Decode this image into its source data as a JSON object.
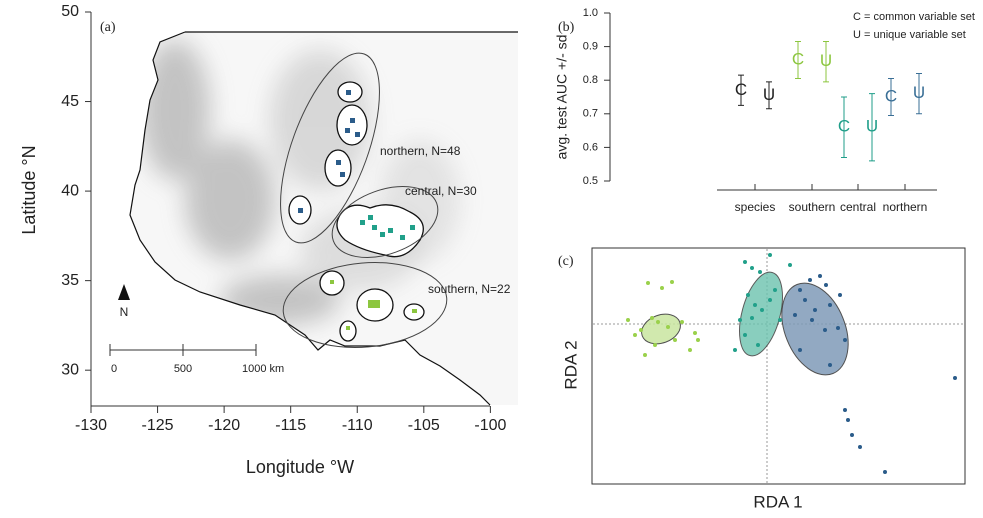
{
  "chart_data": [
    {
      "type": "map",
      "panel": "(a)",
      "x_label": "Longitude °W",
      "y_label": "Latitude °N",
      "xlim": [
        -130,
        -98
      ],
      "ylim": [
        28,
        50
      ],
      "xticks": [
        -130,
        -125,
        -120,
        -115,
        -110,
        -105,
        -100
      ],
      "yticks": [
        30,
        35,
        40,
        45,
        50
      ],
      "annotations": [
        "northern, N=48",
        "central, N=30",
        "southern, N=22"
      ],
      "north_label": "N",
      "scale_bar": [
        "0",
        "500",
        "1000 km"
      ]
    },
    {
      "type": "errorbar",
      "panel": "(b)",
      "y_label": "avg. test AUC +/- sd",
      "legend": [
        "C = common variable set",
        "U = unique variable set"
      ],
      "categories": [
        "species",
        "southern",
        "central",
        "northern"
      ],
      "colors": [
        "#222222",
        "#8cc63f",
        "#1f9e89",
        "#3a6f96"
      ],
      "series": [
        {
          "name": "C",
          "values": [
            0.77,
            0.86,
            0.66,
            0.75
          ],
          "errors": [
            0.045,
            0.055,
            0.09,
            0.055
          ]
        },
        {
          "name": "U",
          "values": [
            0.755,
            0.855,
            0.66,
            0.76
          ],
          "errors": [
            0.04,
            0.06,
            0.1,
            0.06
          ]
        }
      ],
      "ylim": [
        0.5,
        1.0
      ],
      "yticks": [
        0.5,
        0.6,
        0.7,
        0.8,
        0.9,
        {
          "value": 1,
          "label": "1.0"
        }
      ]
    },
    {
      "type": "scatter",
      "panel": "(c)",
      "x_label": "RDA 1",
      "y_label": "RDA 2",
      "xlim": [
        0,
        373
      ],
      "ylim": [
        0,
        236
      ],
      "series": [
        {
          "color": "#9ad14b",
          "x": [
            56,
            70,
            80,
            36,
            43,
            49,
            60,
            66,
            76,
            83,
            90,
            103,
            106,
            53,
            63,
            98
          ],
          "y": [
            201,
            196,
            202,
            164,
            149,
            154,
            166,
            162,
            157,
            144,
            162,
            151,
            144,
            129,
            139,
            134
          ]
        },
        {
          "color": "#21a08a",
          "x": [
            153,
            160,
            168,
            178,
            156,
            163,
            170,
            178,
            148,
            153,
            166,
            143,
            183,
            188,
            160,
            198
          ],
          "y": [
            222,
            216,
            212,
            229,
            189,
            179,
            174,
            184,
            164,
            149,
            139,
            134,
            194,
            164,
            166,
            219
          ]
        },
        {
          "color": "#2b5c8a",
          "x": [
            208,
            218,
            228,
            234,
            213,
            223,
            238,
            248,
            203,
            220,
            233,
            246,
            253,
            208,
            238,
            253,
            260,
            268,
            293,
            363,
            256
          ],
          "y": [
            194,
            204,
            208,
            199,
            184,
            174,
            179,
            189,
            169,
            164,
            154,
            156,
            144,
            134,
            119,
            74,
            49,
            37,
            12,
            106,
            64
          ]
        }
      ]
    }
  ]
}
